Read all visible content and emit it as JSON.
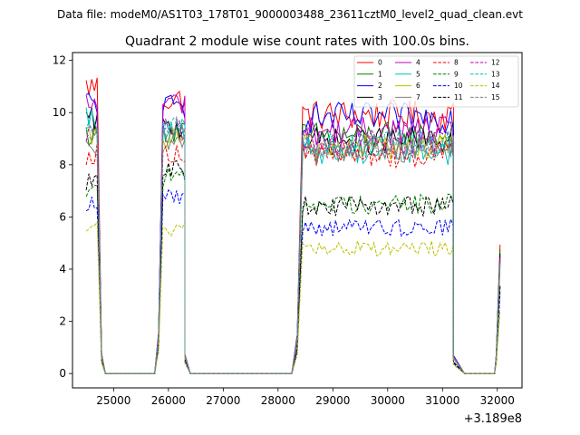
{
  "chart_data": {
    "type": "line",
    "suptitle": "Data file: modeM0/AS1T03_178T01_9000003488_23611cztM0_level2_quad_clean.evt",
    "title": "Quadrant 2 module wise count rates with 100.0s bins.",
    "xlabel": "",
    "ylabel": "",
    "offset_label": "+3.189e8",
    "xlim": [
      24250,
      32450
    ],
    "ylim": [
      -0.55,
      12.3
    ],
    "xticks": [
      25000,
      26000,
      27000,
      28000,
      29000,
      30000,
      31000,
      32000
    ],
    "yticks": [
      0,
      2,
      4,
      6,
      8,
      10,
      12
    ],
    "legend_position": "top-right",
    "segments": [
      {
        "x_start": 24500,
        "x_end": 24700,
        "drop": [
          24780,
          24850
        ],
        "zero_until": 25750
      },
      {
        "x_start": 25900,
        "x_end": 26300,
        "rise": [
          25750,
          25820
        ],
        "drop": [
          26300,
          26400
        ],
        "zero_until": 28250
      },
      {
        "x_start": 28450,
        "x_end": 31200,
        "rise": [
          28250,
          28350
        ],
        "drop": [
          31200,
          31400
        ],
        "zero_until": 31950
      },
      {
        "x_start": 32050,
        "x_end": 32050,
        "rise": [
          31950,
          31980
        ]
      }
    ],
    "series": [
      {
        "name": "0",
        "color": "#ff0000",
        "dashed": false,
        "segment_levels": [
          11.0,
          10.5,
          9.9,
          5.0
        ]
      },
      {
        "name": "1",
        "color": "#008000",
        "dashed": false,
        "segment_levels": [
          9.2,
          9.3,
          9.1,
          4.6
        ]
      },
      {
        "name": "2",
        "color": "#0000ff",
        "dashed": false,
        "segment_levels": [
          10.4,
          10.2,
          9.8,
          4.6
        ]
      },
      {
        "name": "3",
        "color": "#000000",
        "dashed": false,
        "segment_levels": [
          9.7,
          9.4,
          8.9,
          4.5
        ]
      },
      {
        "name": "4",
        "color": "#bf00bf",
        "dashed": false,
        "segment_levels": [
          10.3,
          10.4,
          9.3,
          4.5
        ]
      },
      {
        "name": "5",
        "color": "#00bfbf",
        "dashed": false,
        "segment_levels": [
          9.8,
          9.2,
          8.5,
          4.3
        ]
      },
      {
        "name": "6",
        "color": "#bfbf00",
        "dashed": false,
        "segment_levels": [
          9.0,
          9.0,
          8.7,
          4.3
        ]
      },
      {
        "name": "7",
        "color": "#808080",
        "dashed": false,
        "segment_levels": [
          8.5,
          8.8,
          8.6,
          4.4
        ]
      },
      {
        "name": "8",
        "color": "#ff0000",
        "dashed": true,
        "segment_levels": [
          8.4,
          8.5,
          8.4,
          4.2
        ]
      },
      {
        "name": "9",
        "color": "#008000",
        "dashed": true,
        "segment_levels": [
          7.1,
          7.5,
          6.5,
          3.4
        ]
      },
      {
        "name": "10",
        "color": "#0000ff",
        "dashed": true,
        "segment_levels": [
          6.5,
          6.8,
          5.6,
          3.0
        ]
      },
      {
        "name": "11",
        "color": "#000000",
        "dashed": true,
        "segment_levels": [
          7.3,
          7.9,
          6.4,
          3.4
        ]
      },
      {
        "name": "12",
        "color": "#bf00bf",
        "dashed": true,
        "segment_levels": [
          9.2,
          9.3,
          8.9,
          4.4
        ]
      },
      {
        "name": "13",
        "color": "#00bfbf",
        "dashed": true,
        "segment_levels": [
          9.6,
          9.4,
          8.8,
          4.4
        ]
      },
      {
        "name": "14",
        "color": "#bfbf00",
        "dashed": true,
        "segment_levels": [
          5.6,
          5.5,
          4.8,
          2.4
        ]
      },
      {
        "name": "15",
        "color": "#808080",
        "dashed": true,
        "segment_levels": [
          9.4,
          9.5,
          8.7,
          4.4
        ]
      }
    ]
  }
}
